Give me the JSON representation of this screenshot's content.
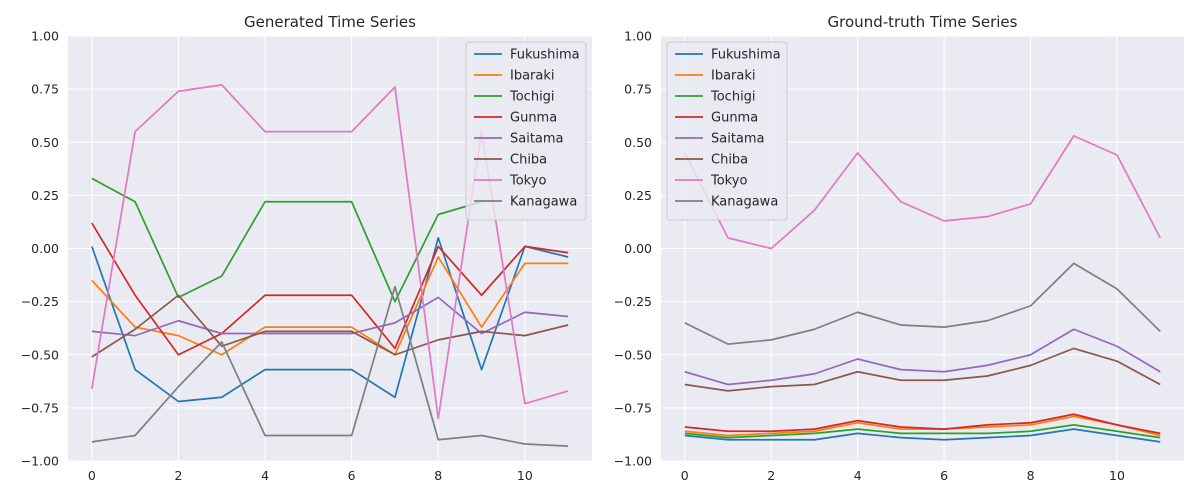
{
  "chart_data": [
    {
      "type": "line",
      "title": "Generated Time Series",
      "xlabel": "",
      "ylabel": "",
      "x": [
        0,
        1,
        2,
        3,
        4,
        5,
        6,
        7,
        8,
        9,
        10,
        11
      ],
      "xlim": [
        -0.55,
        11.55
      ],
      "ylim": [
        -1.0,
        1.0
      ],
      "xticks": [
        0,
        2,
        4,
        6,
        8,
        10
      ],
      "yticks": [
        -1.0,
        -0.75,
        -0.5,
        -0.25,
        0.0,
        0.25,
        0.5,
        0.75,
        1.0
      ],
      "ytick_labels": [
        "−1.00",
        "−0.75",
        "−0.50",
        "−0.25",
        "0.00",
        "0.25",
        "0.50",
        "0.75",
        "1.00"
      ],
      "grid": true,
      "legend_position": "top-right",
      "series": [
        {
          "name": "Fukushima",
          "color": "#1f77b4",
          "values": [
            0.01,
            -0.57,
            -0.72,
            -0.7,
            -0.57,
            -0.57,
            -0.57,
            -0.7,
            0.05,
            -0.57,
            0.01,
            -0.04
          ]
        },
        {
          "name": "Ibaraki",
          "color": "#ff7f0e",
          "values": [
            -0.15,
            -0.37,
            -0.41,
            -0.5,
            -0.37,
            -0.37,
            -0.37,
            -0.5,
            -0.04,
            -0.37,
            -0.07,
            -0.07
          ]
        },
        {
          "name": "Tochigi",
          "color": "#2ca02c",
          "values": [
            0.33,
            0.22,
            -0.23,
            -0.13,
            0.22,
            0.22,
            0.22,
            -0.25,
            0.16,
            0.22,
            null,
            null
          ]
        },
        {
          "name": "Gunma",
          "color": "#d62728",
          "values": [
            0.12,
            -0.22,
            -0.5,
            -0.4,
            -0.22,
            -0.22,
            -0.22,
            -0.47,
            0.01,
            -0.22,
            0.01,
            -0.02
          ]
        },
        {
          "name": "Saitama",
          "color": "#9467bd",
          "values": [
            -0.39,
            -0.41,
            -0.34,
            -0.4,
            -0.4,
            -0.4,
            -0.4,
            -0.35,
            -0.23,
            -0.4,
            -0.3,
            -0.32
          ]
        },
        {
          "name": "Chiba",
          "color": "#8c564b",
          "values": [
            -0.51,
            -0.38,
            -0.22,
            -0.46,
            -0.39,
            -0.39,
            -0.39,
            -0.5,
            -0.43,
            -0.39,
            -0.41,
            -0.36
          ]
        },
        {
          "name": "Tokyo",
          "color": "#e377c2",
          "values": [
            -0.66,
            0.55,
            0.74,
            0.77,
            0.55,
            0.55,
            0.55,
            0.76,
            -0.8,
            0.55,
            -0.73,
            -0.67
          ]
        },
        {
          "name": "Kanagawa",
          "color": "#7f7f7f",
          "values": [
            -0.91,
            -0.88,
            -0.65,
            -0.44,
            -0.88,
            -0.88,
            -0.88,
            -0.18,
            -0.9,
            -0.88,
            -0.92,
            -0.93
          ]
        }
      ]
    },
    {
      "type": "line",
      "title": "Ground-truth Time Series",
      "xlabel": "",
      "ylabel": "",
      "x": [
        0,
        1,
        2,
        3,
        4,
        5,
        6,
        7,
        8,
        9,
        10,
        11
      ],
      "xlim": [
        -0.55,
        11.55
      ],
      "ylim": [
        -1.0,
        1.0
      ],
      "xticks": [
        0,
        2,
        4,
        6,
        8,
        10
      ],
      "yticks": [
        -1.0,
        -0.75,
        -0.5,
        -0.25,
        0.0,
        0.25,
        0.5,
        0.75,
        1.0
      ],
      "ytick_labels": [
        "−1.00",
        "−0.75",
        "−0.50",
        "−0.25",
        "0.00",
        "0.25",
        "0.50",
        "0.75",
        "1.00"
      ],
      "grid": true,
      "legend_position": "top-left",
      "series": [
        {
          "name": "Fukushima",
          "color": "#1f77b4",
          "values": [
            -0.88,
            -0.9,
            -0.9,
            -0.9,
            -0.87,
            -0.89,
            -0.9,
            -0.89,
            -0.88,
            -0.85,
            -0.88,
            -0.91
          ]
        },
        {
          "name": "Ibaraki",
          "color": "#ff7f0e",
          "values": [
            -0.86,
            -0.88,
            -0.87,
            -0.86,
            -0.82,
            -0.85,
            -0.85,
            -0.84,
            -0.83,
            -0.79,
            -0.83,
            -0.88
          ]
        },
        {
          "name": "Tochigi",
          "color": "#2ca02c",
          "values": [
            -0.87,
            -0.89,
            -0.88,
            -0.87,
            -0.85,
            -0.87,
            -0.87,
            -0.87,
            -0.86,
            -0.83,
            -0.86,
            -0.89
          ]
        },
        {
          "name": "Gunma",
          "color": "#d62728",
          "values": [
            -0.84,
            -0.86,
            -0.86,
            -0.85,
            -0.81,
            -0.84,
            -0.85,
            -0.83,
            -0.82,
            -0.78,
            -0.83,
            -0.87
          ]
        },
        {
          "name": "Saitama",
          "color": "#9467bd",
          "values": [
            -0.58,
            -0.64,
            -0.62,
            -0.59,
            -0.52,
            -0.57,
            -0.58,
            -0.55,
            -0.5,
            -0.38,
            -0.46,
            -0.58
          ]
        },
        {
          "name": "Chiba",
          "color": "#8c564b",
          "values": [
            -0.64,
            -0.67,
            -0.65,
            -0.64,
            -0.58,
            -0.62,
            -0.62,
            -0.6,
            -0.55,
            -0.47,
            -0.53,
            -0.64
          ]
        },
        {
          "name": "Tokyo",
          "color": "#e377c2",
          "values": [
            0.45,
            0.05,
            0.0,
            0.18,
            0.45,
            0.22,
            0.13,
            0.15,
            0.21,
            0.53,
            0.44,
            0.05
          ]
        },
        {
          "name": "Kanagawa",
          "color": "#7f7f7f",
          "values": [
            -0.35,
            -0.45,
            -0.43,
            -0.38,
            -0.3,
            -0.36,
            -0.37,
            -0.34,
            -0.27,
            -0.07,
            -0.19,
            -0.39
          ]
        }
      ]
    }
  ]
}
